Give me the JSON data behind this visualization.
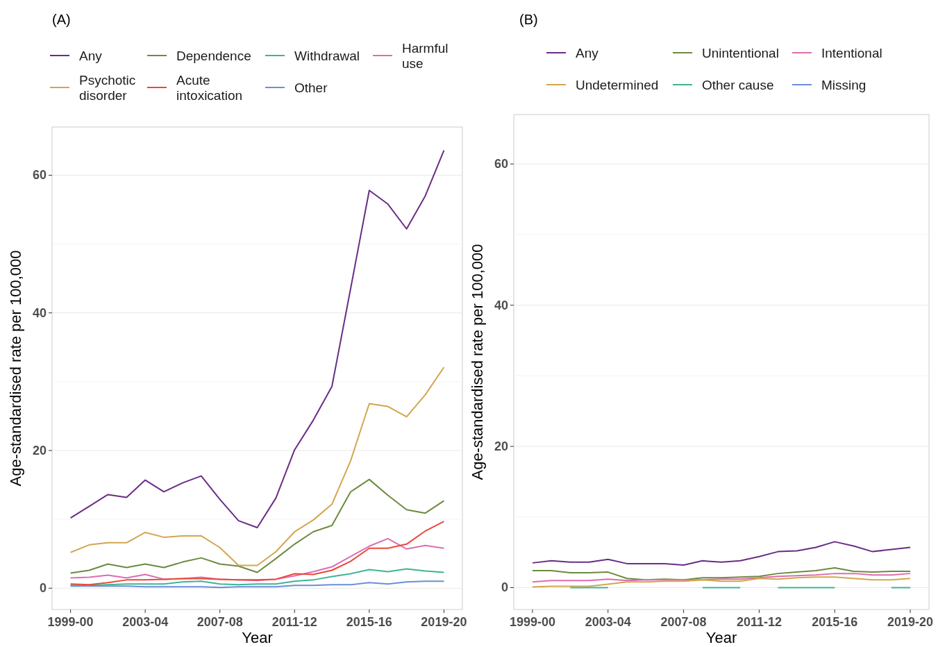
{
  "chart_data": [
    {
      "type": "line",
      "title": "(A)",
      "xlabel": "Year",
      "ylabel": "Age-standardised rate per 100,000",
      "categories": [
        "1999-00",
        null,
        null,
        null,
        "2003-04",
        null,
        null,
        null,
        "2007-08",
        null,
        null,
        null,
        "2011-12",
        null,
        null,
        null,
        "2015-16",
        null,
        null,
        null,
        "2019-20"
      ],
      "ylim": [
        -3.1,
        67
      ],
      "yticks": [
        0,
        {
          "value": 10,
          "label": null
        },
        20,
        {
          "value": 30,
          "label": null
        },
        40,
        {
          "value": 50,
          "label": null
        },
        60
      ],
      "grid": "y",
      "legend": "top",
      "series": [
        {
          "name": "Any",
          "color": "#6a2c86",
          "values": [
            10.2,
            11.9,
            13.6,
            13.2,
            15.7,
            14.0,
            15.3,
            16.3,
            12.9,
            9.8,
            8.8,
            13.1,
            20.1,
            24.4,
            29.3,
            43.5,
            57.8,
            55.8,
            52.2,
            57.0,
            63.6
          ]
        },
        {
          "name": "Dependence",
          "color": "#6b8a3e",
          "values": [
            2.2,
            2.6,
            3.5,
            3.0,
            3.5,
            3.0,
            3.8,
            4.4,
            3.5,
            3.2,
            2.3,
            4.3,
            6.4,
            8.2,
            9.1,
            14.0,
            15.8,
            13.5,
            11.4,
            10.9,
            12.7
          ]
        },
        {
          "name": "Withdrawal",
          "color": "#3db594",
          "values": [
            0.4,
            0.4,
            0.5,
            0.6,
            0.6,
            0.6,
            0.9,
            1.0,
            0.6,
            0.5,
            0.6,
            0.6,
            1.0,
            1.2,
            1.7,
            2.1,
            2.7,
            2.4,
            2.8,
            2.5,
            2.3
          ]
        },
        {
          "name": "Harmful use",
          "color": "#de6cb0",
          "values": [
            1.5,
            1.6,
            1.9,
            1.5,
            2.0,
            1.3,
            1.4,
            1.6,
            1.3,
            1.2,
            1.1,
            1.3,
            1.8,
            2.4,
            3.1,
            4.6,
            6.1,
            7.2,
            5.7,
            6.2,
            5.8
          ]
        },
        {
          "name": "Psychotic disorder",
          "color": "#d2a64e",
          "values": [
            5.2,
            6.3,
            6.6,
            6.6,
            8.1,
            7.4,
            7.6,
            7.6,
            5.9,
            3.3,
            3.3,
            5.3,
            8.2,
            9.9,
            12.2,
            18.5,
            26.8,
            26.4,
            24.9,
            28.1,
            32.1
          ]
        },
        {
          "name": "Acute intoxication",
          "color": "#e8483a",
          "values": [
            0.6,
            0.5,
            0.8,
            1.2,
            1.2,
            1.3,
            1.4,
            1.4,
            1.3,
            1.2,
            1.2,
            1.3,
            2.1,
            2.0,
            2.6,
            3.9,
            5.8,
            5.8,
            6.4,
            8.3,
            9.7
          ]
        },
        {
          "name": "Other",
          "color": "#6b8ed8",
          "values": [
            0.3,
            0.3,
            0.3,
            0.3,
            0.2,
            0.2,
            0.2,
            0.2,
            0.1,
            0.2,
            0.2,
            0.2,
            0.4,
            0.4,
            0.5,
            0.5,
            0.8,
            0.6,
            0.9,
            1.0,
            1.0
          ]
        }
      ]
    },
    {
      "type": "line",
      "title": "(B)",
      "xlabel": "Year",
      "ylabel": "Age-standardised rate per 100,000",
      "categories": [
        "1999-00",
        null,
        null,
        null,
        "2003-04",
        null,
        null,
        null,
        "2007-08",
        null,
        null,
        null,
        "2011-12",
        null,
        null,
        null,
        "2015-16",
        null,
        null,
        null,
        "2019-20"
      ],
      "ylim": [
        -3.1,
        67
      ],
      "yticks": [
        0,
        {
          "value": 10,
          "label": null
        },
        20,
        {
          "value": 30,
          "label": null
        },
        40,
        {
          "value": 50,
          "label": null
        },
        60
      ],
      "grid": "y",
      "legend": "top",
      "series": [
        {
          "name": "Any",
          "color": "#6a2c86",
          "values": [
            3.5,
            3.8,
            3.6,
            3.6,
            4.0,
            3.4,
            3.4,
            3.4,
            3.2,
            3.8,
            3.6,
            3.8,
            4.4,
            5.1,
            5.2,
            5.7,
            6.5,
            5.9,
            5.1,
            5.4,
            5.7
          ]
        },
        {
          "name": "Unintentional",
          "color": "#6b8a3e",
          "values": [
            2.4,
            2.4,
            2.1,
            2.1,
            2.2,
            1.3,
            1.1,
            1.2,
            1.1,
            1.4,
            1.4,
            1.5,
            1.6,
            2.0,
            2.2,
            2.4,
            2.8,
            2.3,
            2.2,
            2.3,
            2.3
          ]
        },
        {
          "name": "Intentional",
          "color": "#de6cb0",
          "values": [
            0.8,
            1.0,
            1.0,
            1.0,
            1.2,
            1.0,
            1.1,
            1.1,
            1.1,
            1.1,
            1.2,
            1.2,
            1.4,
            1.6,
            1.7,
            1.8,
            2.0,
            2.0,
            1.8,
            1.8,
            2.0
          ]
        },
        {
          "name": "Undetermined",
          "color": "#d2a64e",
          "values": [
            0.1,
            0.2,
            0.2,
            0.2,
            0.5,
            0.8,
            0.8,
            0.9,
            0.9,
            1.1,
            0.9,
            0.9,
            1.3,
            1.2,
            1.4,
            1.5,
            1.5,
            1.3,
            1.1,
            1.1,
            1.3
          ]
        },
        {
          "name": "Other cause",
          "color": "#3db594",
          "values": [
            null,
            null,
            0,
            0,
            0,
            null,
            null,
            null,
            null,
            0,
            0,
            0,
            null,
            0,
            0,
            0,
            0,
            null,
            null,
            0,
            0
          ]
        },
        {
          "name": "Missing",
          "color": "#6b8ed8",
          "values": [
            null,
            null,
            null,
            null,
            null,
            null,
            null,
            null,
            null,
            null,
            null,
            null,
            null,
            null,
            null,
            null,
            null,
            null,
            null,
            null,
            null
          ]
        }
      ]
    }
  ]
}
